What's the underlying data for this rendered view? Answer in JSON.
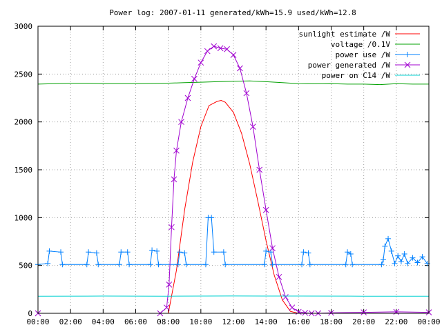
{
  "chart_data": {
    "type": "line",
    "title": "Power log: 2007-01-11 generated/kWh=15.9 used/kWh=12.8",
    "xlabel": "",
    "ylabel": "",
    "x_range_hours": [
      0,
      24
    ],
    "ylim": [
      0,
      3000
    ],
    "x_tick_labels": [
      "00:00",
      "02:00",
      "04:00",
      "06:00",
      "08:00",
      "10:00",
      "12:00",
      "14:00",
      "16:00",
      "18:00",
      "20:00",
      "22:00",
      "00:00"
    ],
    "y_ticks": [
      0,
      500,
      1000,
      1500,
      2000,
      2500,
      3000
    ],
    "grid": true,
    "legend_position": "top-right",
    "series": [
      {
        "name": "sunlight estimate /W",
        "color": "#ff0000",
        "style": "line",
        "x": [
          8.0,
          8.5,
          9.0,
          9.5,
          10.0,
          10.5,
          11.0,
          11.25,
          11.5,
          12.0,
          12.5,
          13.0,
          13.5,
          14.0,
          14.5,
          15.0,
          15.5,
          16.0
        ],
        "y": [
          0,
          450,
          1080,
          1580,
          1950,
          2170,
          2215,
          2225,
          2205,
          2100,
          1880,
          1560,
          1170,
          760,
          400,
          140,
          20,
          0
        ]
      },
      {
        "name": "voltage /0.1V",
        "color": "#00a000",
        "style": "line",
        "x": [
          0,
          1,
          2,
          3,
          4,
          5,
          6,
          7,
          8,
          9,
          10,
          11,
          12,
          13,
          14,
          15,
          16,
          17,
          18,
          19,
          20,
          21,
          22,
          23,
          24
        ],
        "y": [
          2395,
          2400,
          2405,
          2405,
          2400,
          2400,
          2400,
          2402,
          2405,
          2410,
          2415,
          2420,
          2425,
          2428,
          2420,
          2410,
          2400,
          2398,
          2400,
          2395,
          2395,
          2390,
          2400,
          2395,
          2395
        ]
      },
      {
        "name": "power use /W",
        "color": "#0080ff",
        "style": "linespoints",
        "x": [
          0,
          0.6,
          0.7,
          1.4,
          1.5,
          3.0,
          3.1,
          3.6,
          3.7,
          5.0,
          5.1,
          5.5,
          5.6,
          6.9,
          7.0,
          7.3,
          7.4,
          8.6,
          8.7,
          9.0,
          9.1,
          10.3,
          10.45,
          10.65,
          10.8,
          11.4,
          11.5,
          13.9,
          14.0,
          14.3,
          14.4,
          16.2,
          16.3,
          16.6,
          16.7,
          18.9,
          19.0,
          19.2,
          19.3,
          21.1,
          21.2,
          21.3,
          21.5,
          21.7,
          21.9,
          22.1,
          22.3,
          22.5,
          22.7,
          23.0,
          23.3,
          23.6,
          23.9
        ],
        "y": [
          510,
          520,
          650,
          640,
          510,
          510,
          640,
          630,
          510,
          510,
          640,
          640,
          510,
          510,
          660,
          650,
          510,
          510,
          640,
          630,
          510,
          510,
          1000,
          1000,
          640,
          640,
          510,
          510,
          650,
          640,
          510,
          510,
          640,
          630,
          510,
          510,
          640,
          620,
          510,
          510,
          560,
          700,
          780,
          650,
          520,
          600,
          540,
          620,
          520,
          580,
          530,
          590,
          520
        ]
      },
      {
        "name": "power generated /W",
        "color": "#a000d0",
        "style": "linespoints",
        "x": [
          0,
          7.5,
          7.9,
          8.05,
          8.2,
          8.35,
          8.5,
          8.8,
          9.2,
          9.6,
          10.0,
          10.4,
          10.8,
          11.2,
          11.6,
          12.0,
          12.4,
          12.8,
          13.2,
          13.6,
          14.0,
          14.4,
          14.8,
          15.2,
          15.6,
          16.0,
          16.4,
          16.8,
          17.2,
          18.0,
          20.0,
          22.0,
          24.0
        ],
        "y": [
          0,
          0,
          60,
          300,
          900,
          1400,
          1700,
          2000,
          2250,
          2450,
          2620,
          2740,
          2790,
          2770,
          2760,
          2700,
          2560,
          2300,
          1950,
          1500,
          1080,
          680,
          380,
          170,
          60,
          15,
          5,
          0,
          0,
          5,
          10,
          15,
          10
        ]
      },
      {
        "name": "power on C14 /W",
        "color": "#00d0d0",
        "style": "line",
        "x": [
          0,
          4,
          8,
          12,
          16,
          20,
          24
        ],
        "y": [
          178,
          180,
          179,
          181,
          180,
          179,
          178
        ]
      }
    ]
  }
}
